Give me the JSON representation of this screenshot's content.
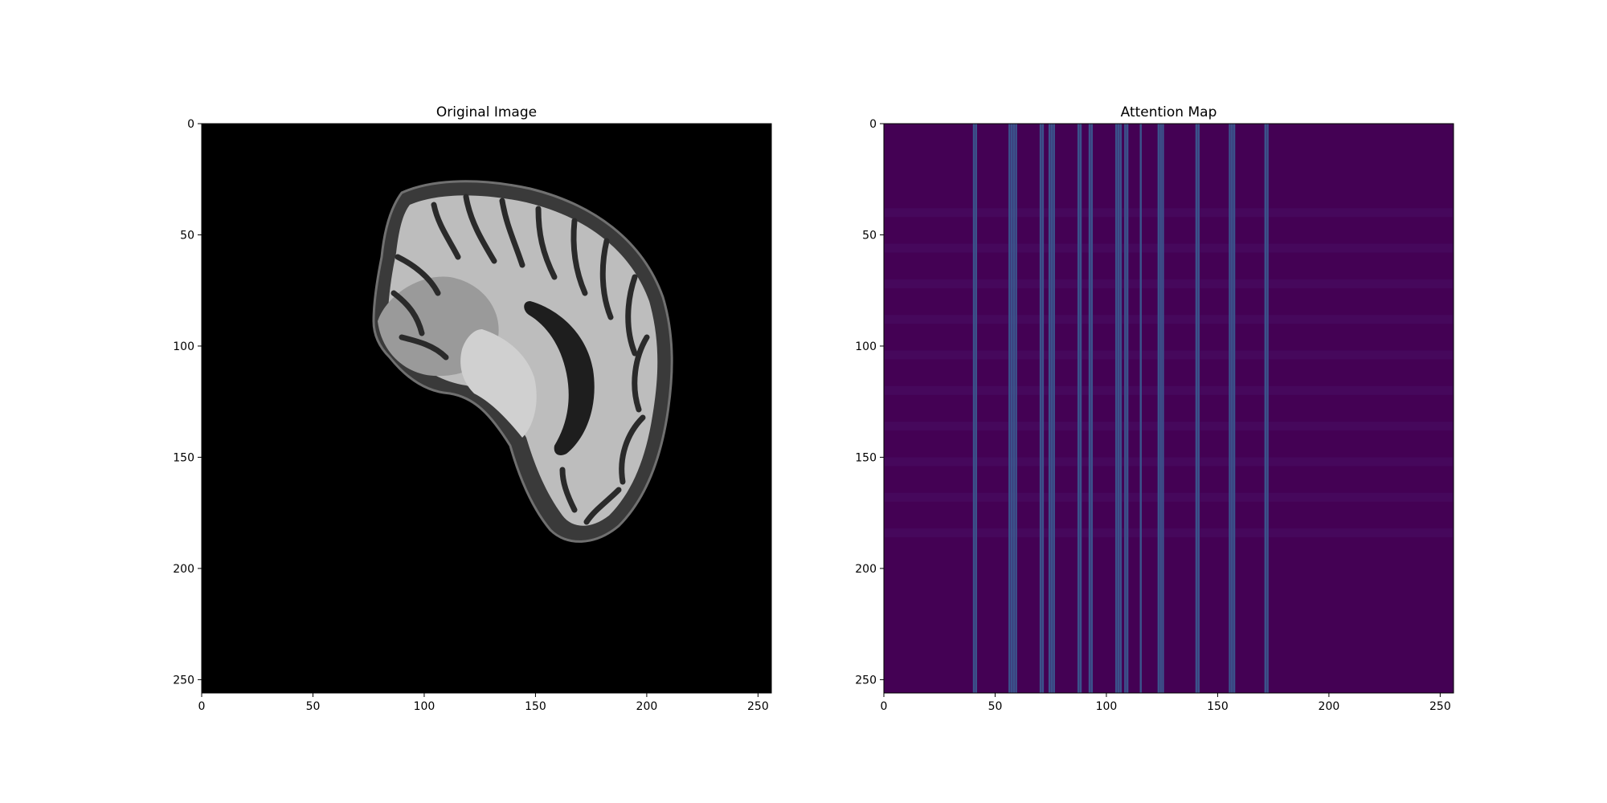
{
  "chart_data": [
    {
      "type": "image",
      "title": "Original Image",
      "colormap": "gray",
      "background_color": "#000000",
      "xlim": [
        0,
        256
      ],
      "ylim": [
        256,
        0
      ],
      "xticks": [
        0,
        50,
        100,
        150,
        200,
        250
      ],
      "yticks": [
        0,
        50,
        100,
        150,
        200,
        250
      ],
      "xlabel": "",
      "ylabel": ""
    },
    {
      "type": "heatmap",
      "title": "Attention Map",
      "colormap": "viridis",
      "base_color": "#440154",
      "stripe_color": "#3b528b",
      "band_color": "#46085c",
      "xlim": [
        0,
        256
      ],
      "ylim": [
        256,
        0
      ],
      "xticks": [
        0,
        50,
        100,
        150,
        200,
        250
      ],
      "yticks": [
        0,
        50,
        100,
        150,
        200,
        250
      ],
      "xlabel": "",
      "ylabel": "",
      "vertical_stripe_columns": [
        40,
        41,
        56,
        57,
        58,
        59,
        70,
        71,
        74,
        75,
        76,
        87,
        88,
        92,
        93,
        104,
        105,
        106,
        108,
        109,
        115,
        123,
        124,
        125,
        140,
        141,
        155,
        156,
        157,
        171,
        172
      ],
      "horizontal_band_rows": [
        [
          38,
          42
        ],
        [
          54,
          58
        ],
        [
          70,
          74
        ],
        [
          86,
          90
        ],
        [
          102,
          106
        ],
        [
          118,
          122
        ],
        [
          134,
          138
        ],
        [
          150,
          154
        ],
        [
          166,
          170
        ],
        [
          182,
          186
        ]
      ]
    }
  ]
}
